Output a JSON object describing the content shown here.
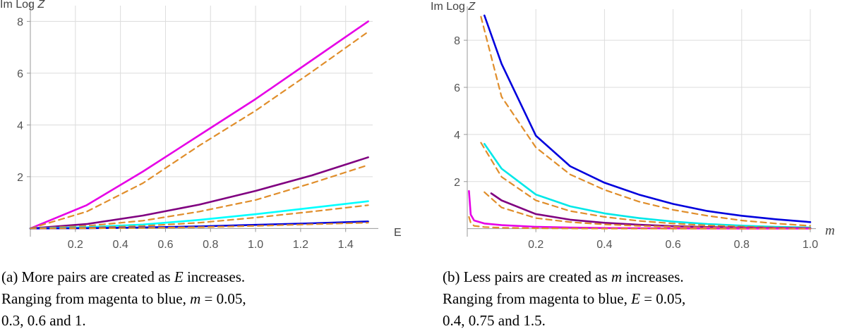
{
  "panel_a": {
    "caption_lines": [
      [
        "(a) More pairs are created as ",
        "E",
        " increases."
      ],
      [
        "Ranging from magenta to blue, ",
        "m",
        " = 0.05,"
      ],
      [
        "0.3, 0.6 and 1."
      ]
    ]
  },
  "panel_b": {
    "caption_lines": [
      [
        "(b) Less pairs are created as ",
        "m",
        " increases."
      ],
      [
        "Ranging from magenta to blue, ",
        "E",
        " = 0.05,"
      ],
      [
        "0.4, 0.75 and 1.5."
      ]
    ]
  },
  "chart_data": [
    {
      "type": "line",
      "ylabel": "Im Log Z",
      "xlabel": "E",
      "xlim": [
        0,
        1.52
      ],
      "ylim": [
        -0.1,
        8.5
      ],
      "xticks": [
        "0.2",
        "0.4",
        "0.6",
        "0.8",
        "1.0",
        "1.2",
        "1.4"
      ],
      "yticks": [
        "2",
        "4",
        "6",
        "8"
      ],
      "grid": true,
      "legend": "none",
      "series": [
        {
          "style": "solid",
          "color": "#e600e6",
          "x": [
            0,
            0.25,
            0.5,
            0.75,
            1.0,
            1.25,
            1.5
          ],
          "y": [
            0,
            0.9,
            2.2,
            3.6,
            5.0,
            6.5,
            8.0
          ]
        },
        {
          "style": "dashed",
          "color": "#e08e2b",
          "x": [
            0,
            0.25,
            0.5,
            0.75,
            1.0,
            1.25,
            1.5
          ],
          "y": [
            0,
            0.65,
            1.75,
            3.2,
            4.55,
            6.05,
            7.6
          ]
        },
        {
          "style": "solid",
          "color": "#800080",
          "x": [
            0,
            0.25,
            0.5,
            0.75,
            1.0,
            1.25,
            1.5
          ],
          "y": [
            0,
            0.17,
            0.5,
            0.92,
            1.45,
            2.05,
            2.75
          ]
        },
        {
          "style": "dashed",
          "color": "#e08e2b",
          "x": [
            0,
            0.25,
            0.5,
            0.75,
            1.0,
            1.25,
            1.5
          ],
          "y": [
            0,
            0.1,
            0.3,
            0.65,
            1.1,
            1.75,
            2.45
          ]
        },
        {
          "style": "solid",
          "color": "#00ffff",
          "x": [
            0,
            0.25,
            0.5,
            0.75,
            1.0,
            1.25,
            1.5
          ],
          "y": [
            0,
            0.05,
            0.15,
            0.33,
            0.55,
            0.8,
            1.05
          ]
        },
        {
          "style": "dashed",
          "color": "#e08e2b",
          "x": [
            0,
            0.25,
            0.5,
            0.75,
            1.0,
            1.25,
            1.5
          ],
          "y": [
            0,
            0.03,
            0.1,
            0.22,
            0.42,
            0.65,
            0.9
          ]
        },
        {
          "style": "solid",
          "color": "#0000dd",
          "x": [
            0,
            0.25,
            0.5,
            0.75,
            1.0,
            1.25,
            1.5
          ],
          "y": [
            0,
            0.01,
            0.04,
            0.08,
            0.14,
            0.2,
            0.27
          ]
        },
        {
          "style": "dashed",
          "color": "#e08e2b",
          "x": [
            0,
            0.25,
            0.5,
            0.75,
            1.0,
            1.25,
            1.5
          ],
          "y": [
            0,
            0.005,
            0.02,
            0.05,
            0.1,
            0.16,
            0.22
          ]
        }
      ]
    },
    {
      "type": "line",
      "ylabel": "Im Log Z",
      "xlabel": "m",
      "xlim": [
        0,
        1.0
      ],
      "ylim": [
        -0.1,
        9.2
      ],
      "xticks": [
        "0.2",
        "0.4",
        "0.6",
        "0.8",
        "1.0"
      ],
      "yticks": [
        "2",
        "4",
        "6",
        "8"
      ],
      "grid": true,
      "legend": "none",
      "series": [
        {
          "style": "solid",
          "color": "#0000dd",
          "x": [
            0.05,
            0.1,
            0.2,
            0.3,
            0.4,
            0.5,
            0.6,
            0.7,
            0.8,
            0.9,
            1.0
          ],
          "y": [
            9.05,
            7.0,
            3.95,
            2.65,
            1.95,
            1.45,
            1.05,
            0.75,
            0.55,
            0.4,
            0.28
          ]
        },
        {
          "style": "dashed",
          "color": "#e08e2b",
          "x": [
            0.04,
            0.1,
            0.2,
            0.3,
            0.4,
            0.5,
            0.6,
            0.7,
            0.8,
            0.9,
            1.0
          ],
          "y": [
            9.0,
            5.6,
            3.45,
            2.3,
            1.65,
            1.15,
            0.8,
            0.55,
            0.35,
            0.22,
            0.12
          ]
        },
        {
          "style": "solid",
          "color": "#00e8e8",
          "x": [
            0.05,
            0.1,
            0.2,
            0.3,
            0.4,
            0.5,
            0.6,
            0.7,
            0.8,
            0.9,
            1.0
          ],
          "y": [
            3.6,
            2.55,
            1.45,
            0.95,
            0.65,
            0.45,
            0.3,
            0.2,
            0.13,
            0.08,
            0.05
          ]
        },
        {
          "style": "dashed",
          "color": "#e08e2b",
          "x": [
            0.04,
            0.1,
            0.2,
            0.3,
            0.4,
            0.5,
            0.6,
            0.7,
            0.8,
            0.9,
            1.0
          ],
          "y": [
            3.65,
            2.2,
            1.2,
            0.75,
            0.5,
            0.33,
            0.22,
            0.14,
            0.09,
            0.05,
            0.03
          ]
        },
        {
          "style": "solid",
          "color": "#800080",
          "x": [
            0.07,
            0.1,
            0.2,
            0.3,
            0.4,
            0.5,
            0.6,
            0.7,
            0.8,
            0.9,
            1.0
          ],
          "y": [
            1.5,
            1.2,
            0.62,
            0.38,
            0.25,
            0.17,
            0.11,
            0.07,
            0.05,
            0.03,
            0.02
          ]
        },
        {
          "style": "dashed",
          "color": "#e08e2b",
          "x": [
            0.05,
            0.1,
            0.2,
            0.3,
            0.4,
            0.5,
            0.6,
            0.7,
            0.8,
            0.9,
            1.0
          ],
          "y": [
            1.55,
            0.9,
            0.45,
            0.28,
            0.18,
            0.12,
            0.08,
            0.05,
            0.03,
            0.02,
            0.01
          ]
        },
        {
          "style": "solid",
          "color": "#e600e6",
          "x": [
            0.005,
            0.01,
            0.02,
            0.05,
            0.1,
            0.2,
            0.3,
            0.4,
            0.6,
            0.8,
            1.0
          ],
          "y": [
            1.6,
            0.6,
            0.35,
            0.22,
            0.15,
            0.08,
            0.05,
            0.03,
            0.015,
            0.008,
            0.005
          ]
        },
        {
          "style": "dashed",
          "color": "#e08e2b",
          "x": [
            0.005,
            0.01,
            0.02,
            0.05,
            0.1,
            0.2,
            0.3,
            0.4,
            0.6,
            0.8,
            1.0
          ],
          "y": [
            0.5,
            0.25,
            0.12,
            0.07,
            0.04,
            0.02,
            0.01,
            0.005,
            0.002,
            0.001,
            0.0
          ]
        }
      ]
    }
  ]
}
